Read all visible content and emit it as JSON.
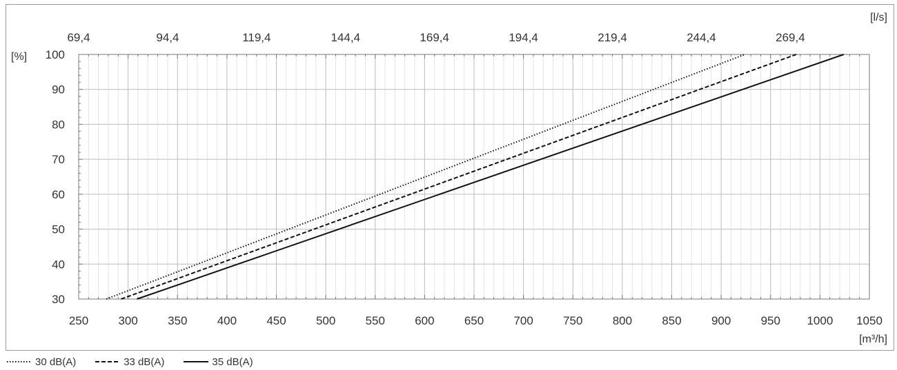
{
  "chart_data": {
    "type": "line",
    "x_unit_label": "[m³/h]",
    "x2_unit_label": "[l/s]",
    "y_unit_label": "[%]",
    "xlim": [
      250,
      1050
    ],
    "ylim": [
      30,
      100
    ],
    "x_ticks": [
      250,
      300,
      350,
      400,
      450,
      500,
      550,
      600,
      650,
      700,
      750,
      800,
      850,
      900,
      950,
      1000,
      1050
    ],
    "y_ticks": [
      30,
      40,
      50,
      60,
      70,
      80,
      90,
      100
    ],
    "x2_tick_labels": [
      {
        "m3h": 250,
        "label": "69,4"
      },
      {
        "m3h": 340,
        "label": "94,4"
      },
      {
        "m3h": 430,
        "label": "119,4"
      },
      {
        "m3h": 520,
        "label": "144,4"
      },
      {
        "m3h": 610,
        "label": "169,4"
      },
      {
        "m3h": 700,
        "label": "194,4"
      },
      {
        "m3h": 790,
        "label": "219,4"
      },
      {
        "m3h": 880,
        "label": "244,4"
      },
      {
        "m3h": 970,
        "label": "269,4"
      }
    ],
    "grid": true,
    "legend_position": "bottom-left",
    "series": [
      {
        "name": "30 dB(A)",
        "style": "dotted",
        "x": [
          278,
          924
        ],
        "y": [
          30,
          100
        ]
      },
      {
        "name": "33 dB(A)",
        "style": "dashed",
        "x": [
          293,
          976
        ],
        "y": [
          30,
          100
        ]
      },
      {
        "name": "35 dB(A)",
        "style": "solid",
        "x": [
          309,
          1024
        ],
        "y": [
          30,
          100
        ]
      }
    ]
  }
}
